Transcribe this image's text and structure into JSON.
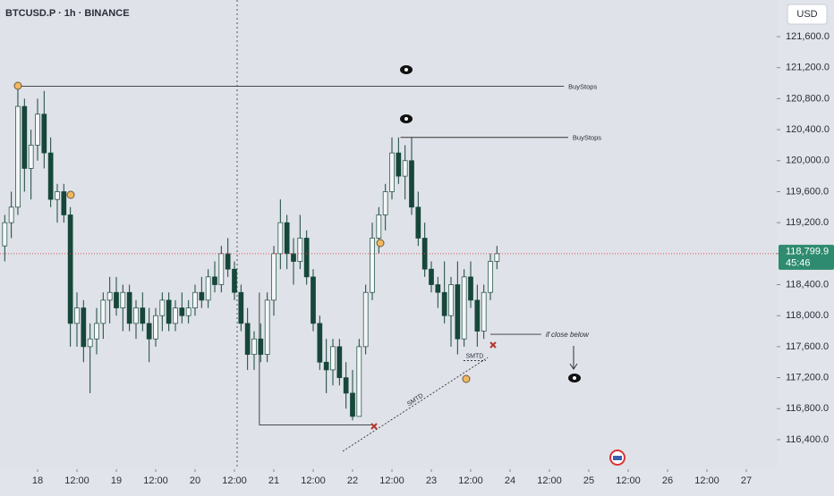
{
  "chart_data": {
    "type": "candlestick",
    "title": "BTCUSD.P · 1h · BINANCE",
    "currency": "USD",
    "up_color": "#f4f6f8",
    "down_color": "#16473a",
    "wick_color": "#16473a",
    "last_price": {
      "value": 118799.9,
      "label": "118,799.9"
    },
    "countdown": "45:46",
    "xlim": [
      -11.45,
      225.27
    ],
    "ylim": [
      116019,
      122073
    ],
    "xticks": [
      {
        "value": 0,
        "label": "18"
      },
      {
        "value": 12,
        "label": "12:00"
      },
      {
        "value": 24,
        "label": "19"
      },
      {
        "value": 36,
        "label": "12:00"
      },
      {
        "value": 48,
        "label": "20"
      },
      {
        "value": 60,
        "label": "12:00"
      },
      {
        "value": 72,
        "label": "21"
      },
      {
        "value": 84,
        "label": "12:00"
      },
      {
        "value": 96,
        "label": "22"
      },
      {
        "value": 108,
        "label": "12:00"
      },
      {
        "value": 120,
        "label": "23"
      },
      {
        "value": 132,
        "label": "12:00"
      },
      {
        "value": 144,
        "label": "24"
      },
      {
        "value": 156,
        "label": "12:00"
      },
      {
        "value": 168,
        "label": "25"
      },
      {
        "value": 180,
        "label": "12:00"
      },
      {
        "value": 192,
        "label": "26"
      },
      {
        "value": 204,
        "label": "12:00"
      },
      {
        "value": 216,
        "label": "27"
      }
    ],
    "yticks": [
      {
        "value": 116400,
        "label": "116,400.0"
      },
      {
        "value": 116800,
        "label": "116,800.0"
      },
      {
        "value": 117200,
        "label": "117,200.0"
      },
      {
        "value": 117600,
        "label": "117,600.0"
      },
      {
        "value": 118000,
        "label": "118,000.0"
      },
      {
        "value": 118400,
        "label": "118,400.0"
      },
      {
        "value": 118800,
        "label": "118,800.0"
      },
      {
        "value": 119200,
        "label": "119,200.0"
      },
      {
        "value": 119600,
        "label": "119,600.0"
      },
      {
        "value": 120000,
        "label": "120,000.0"
      },
      {
        "value": 120400,
        "label": "120,400.0"
      },
      {
        "value": 120800,
        "label": "120,800.0"
      },
      {
        "value": 121200,
        "label": "121,200.0"
      },
      {
        "value": 121600,
        "label": "121,600.0"
      }
    ],
    "candles": {
      "x": [
        -10,
        -8,
        -6,
        -4,
        -2,
        0,
        2,
        4,
        6,
        8,
        10,
        12,
        14,
        16,
        18,
        20,
        22,
        24,
        26,
        28,
        30,
        32,
        34,
        36,
        38,
        40,
        42,
        44,
        46,
        48,
        50,
        52,
        54,
        56,
        58,
        60,
        62,
        64,
        66,
        68,
        70,
        72,
        74,
        76,
        78,
        80,
        82,
        84,
        86,
        88,
        90,
        92,
        94,
        96,
        98,
        100,
        102,
        104,
        106,
        108,
        110,
        112,
        114,
        116,
        118,
        120,
        122,
        124,
        126,
        128,
        130,
        132,
        134,
        136,
        138,
        140
      ],
      "open": [
        118900,
        119200,
        119400,
        120700,
        119900,
        120200,
        120600,
        120100,
        119500,
        119600,
        119300,
        117900,
        118100,
        117600,
        117700,
        117900,
        118200,
        118300,
        118100,
        118300,
        117900,
        118100,
        117900,
        117700,
        118000,
        118200,
        117900,
        118100,
        118000,
        118100,
        118300,
        118200,
        118500,
        118400,
        118800,
        118600,
        118300,
        117900,
        117500,
        117700,
        117500,
        118200,
        118800,
        119200,
        118800,
        118700,
        119000,
        118500,
        117900,
        117400,
        117300,
        117600,
        117200,
        117000,
        116700,
        117600,
        118300,
        119000,
        119300,
        119600,
        120100,
        119800,
        120000,
        119400,
        119000,
        118600,
        118400,
        118300,
        118000,
        118400,
        117700,
        118500,
        118200,
        117800,
        118300,
        118700
      ],
      "high": [
        119300,
        119600,
        120950,
        120800,
        120400,
        120800,
        120900,
        120300,
        119700,
        119700,
        119400,
        118300,
        118200,
        117900,
        118100,
        118300,
        118500,
        118500,
        118400,
        118400,
        118200,
        118300,
        118100,
        118100,
        118300,
        118300,
        118200,
        118300,
        118200,
        118400,
        118500,
        118600,
        118700,
        118900,
        119000,
        118700,
        118400,
        118100,
        117800,
        117900,
        118300,
        118900,
        119500,
        119300,
        119000,
        119300,
        119100,
        118600,
        118000,
        117700,
        117700,
        117700,
        117400,
        117300,
        117700,
        118400,
        119200,
        119400,
        119700,
        120300,
        120300,
        120200,
        120300,
        119600,
        119200,
        118700,
        118500,
        118700,
        118500,
        118700,
        118600,
        118700,
        118400,
        118400,
        118800,
        118900
      ],
      "low": [
        118700,
        119000,
        119300,
        119600,
        119500,
        120000,
        119900,
        119400,
        119200,
        119200,
        117600,
        117600,
        117400,
        117000,
        117500,
        117700,
        117900,
        118000,
        117800,
        117800,
        117700,
        117800,
        117400,
        117600,
        117800,
        117800,
        117800,
        117900,
        117900,
        118000,
        118100,
        118100,
        118300,
        118300,
        118500,
        118200,
        117800,
        117300,
        117300,
        117400,
        117400,
        118000,
        118600,
        118600,
        118400,
        118600,
        118400,
        117800,
        117300,
        117000,
        117100,
        117100,
        116800,
        116650,
        116700,
        117500,
        118200,
        118800,
        119100,
        119500,
        119700,
        119500,
        119300,
        118900,
        118500,
        118300,
        118100,
        117900,
        117600,
        117500,
        117600,
        118100,
        117600,
        117700,
        118200,
        118600
      ],
      "close": [
        119200,
        119400,
        120700,
        119900,
        120200,
        120600,
        120100,
        119500,
        119600,
        119300,
        117900,
        118100,
        117600,
        117700,
        117900,
        118200,
        118300,
        118100,
        118300,
        117900,
        118100,
        117900,
        117700,
        118000,
        118200,
        117900,
        118100,
        118000,
        118100,
        118300,
        118200,
        118500,
        118400,
        118800,
        118600,
        118300,
        117900,
        117500,
        117700,
        117500,
        118200,
        118800,
        119200,
        118800,
        118700,
        119000,
        118500,
        117900,
        117400,
        117300,
        117600,
        117200,
        117000,
        116700,
        117600,
        118300,
        119000,
        119300,
        119600,
        120100,
        119800,
        120000,
        119400,
        119000,
        118600,
        118400,
        118300,
        118000,
        118400,
        117700,
        118500,
        118200,
        117800,
        118300,
        118700,
        118799.9
      ]
    },
    "lines": [
      {
        "label": "BuyStops",
        "style": "solid",
        "x": [
          -6,
          160.4
        ],
        "y": [
          120960,
          120960
        ]
      },
      {
        "label": "BuyStops",
        "style": "solid",
        "x": [
          110.6,
          161.7
        ],
        "y": [
          120300,
          120300
        ]
      },
      {
        "style": "solid",
        "x": [
          67.6,
          67.6,
          101.7
        ],
        "y": [
          118300,
          116590,
          116590
        ]
      },
      {
        "label": "if close below",
        "style": "solid",
        "x": [
          138,
          153.5
        ],
        "y": [
          117760,
          117760
        ]
      },
      {
        "label": "SMTD",
        "style": "dotted",
        "x": [
          93,
          137.2
        ],
        "y": [
          116250,
          117460
        ]
      },
      {
        "label": "SMTD",
        "style": "dotted",
        "x": [
          129.8,
          136.6
        ],
        "y": [
          117420,
          117420
        ]
      }
    ]
  }
}
